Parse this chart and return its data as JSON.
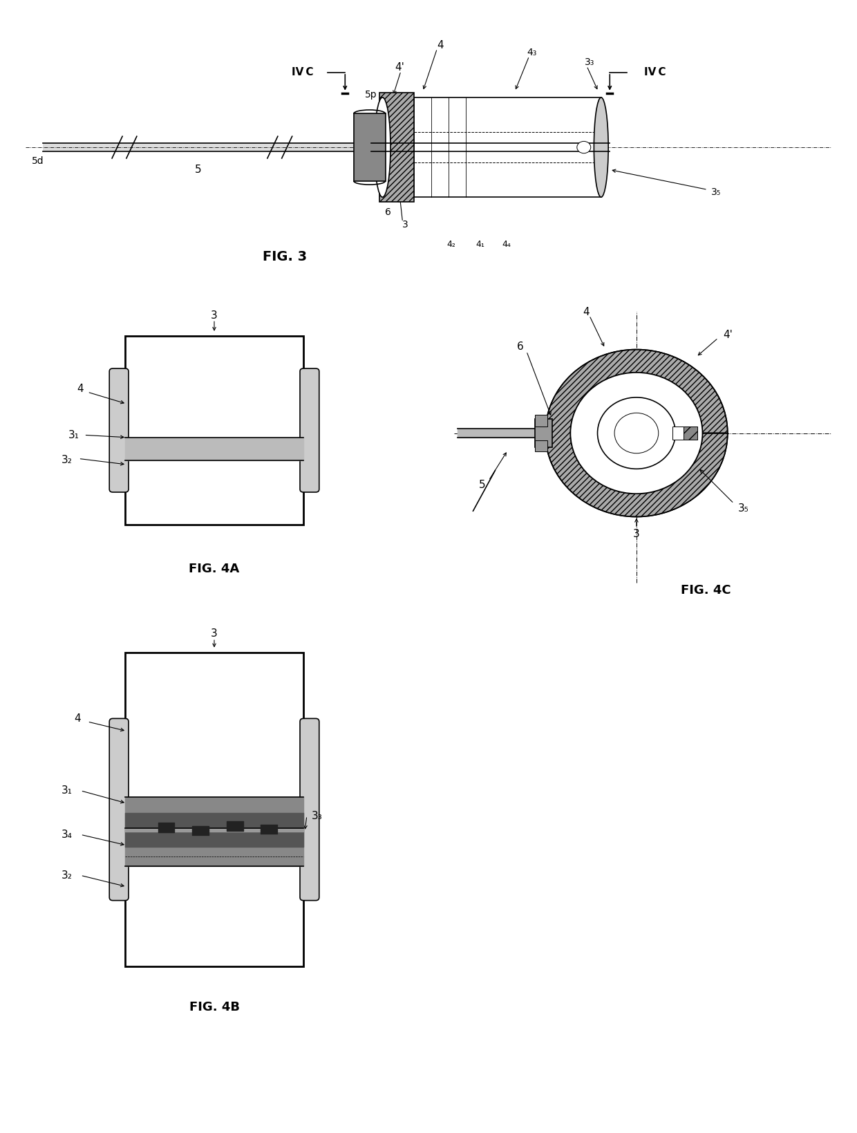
{
  "bg_color": "#ffffff",
  "lc": "#000000",
  "fig3_label": "FIG. 3",
  "fig4a_label": "FIG. 4A",
  "fig4b_label": "FIG. 4B",
  "fig4c_label": "FIG. 4C"
}
